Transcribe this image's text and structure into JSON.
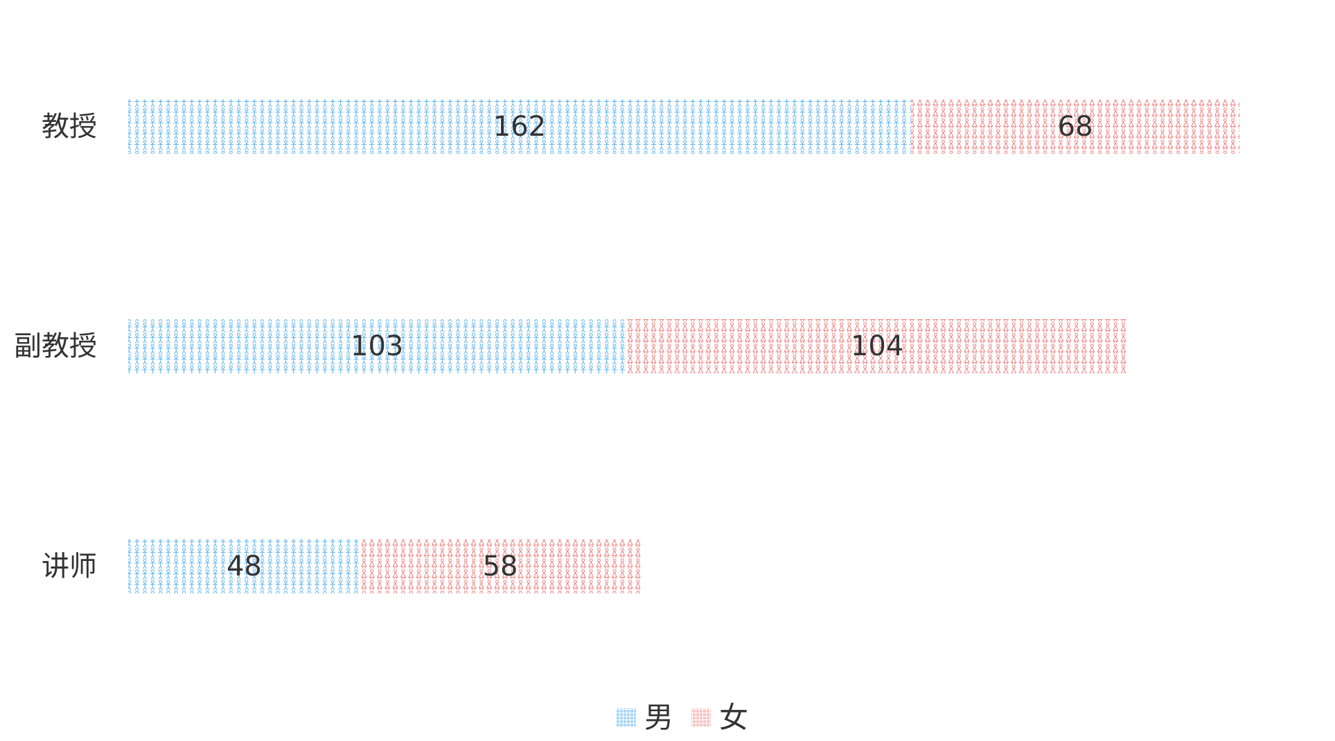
{
  "chart_data": {
    "type": "bar",
    "orientation": "horizontal",
    "stacked": true,
    "categories": [
      "教授",
      "副教授",
      "讲师"
    ],
    "series": [
      {
        "name": "男",
        "values": [
          162,
          103,
          48
        ],
        "color": "#5ab1ef",
        "pattern": "male-person-icon"
      },
      {
        "name": "女",
        "values": [
          68,
          104,
          58
        ],
        "color": "#f08080",
        "pattern": "female-person-icon"
      }
    ],
    "xlim": [
      0,
      300
    ],
    "grid": false,
    "legend_position": "bottom-center",
    "data_labels": true
  }
}
